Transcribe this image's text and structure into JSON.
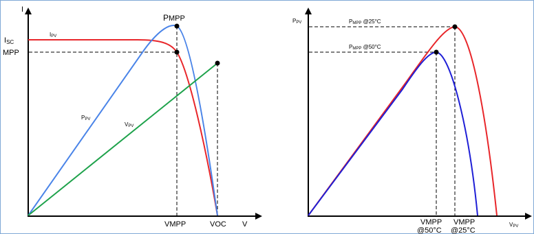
{
  "left_chart": {
    "y_axis_label": "I",
    "x_axis_label": "V",
    "isc_label": {
      "main": "I",
      "sub": "SC"
    },
    "mpp_label": "MPP",
    "ipv_label": {
      "main": "I",
      "sub": "PV"
    },
    "ppv_label": {
      "main": "P",
      "sub": "PV"
    },
    "vpv_label": {
      "main": "V",
      "sub": "PV"
    },
    "pmpp_label": {
      "main": "P",
      "sub": "MPP"
    },
    "vmpp_label": {
      "main": "V",
      "sub": "MPP"
    },
    "voc_label": {
      "main": "V",
      "sub": "OC"
    },
    "colors": {
      "current": "#e8262a",
      "power": "#4a84e8",
      "voltage": "#1ea24b",
      "axis": "#000000"
    }
  },
  "right_chart": {
    "y_axis_label": {
      "main": "P",
      "sub": "PV"
    },
    "x_axis_label": {
      "main": "V",
      "sub": "PV"
    },
    "pmpp25_label": {
      "main": "P",
      "sub": "MPP",
      "rest": " @25°C"
    },
    "pmpp50_label": {
      "main": "P",
      "sub": "MPP",
      "rest": " @50°C"
    },
    "vmpp50_label": {
      "main": "V",
      "sub": "MPP",
      "line2": "@50°C"
    },
    "vmpp25_label": {
      "main": "V",
      "sub": "MPP",
      "line2": "@25°C"
    },
    "colors": {
      "curve_25": "#e8262a",
      "curve_50": "#1f1fd6",
      "axis": "#000000"
    }
  }
}
